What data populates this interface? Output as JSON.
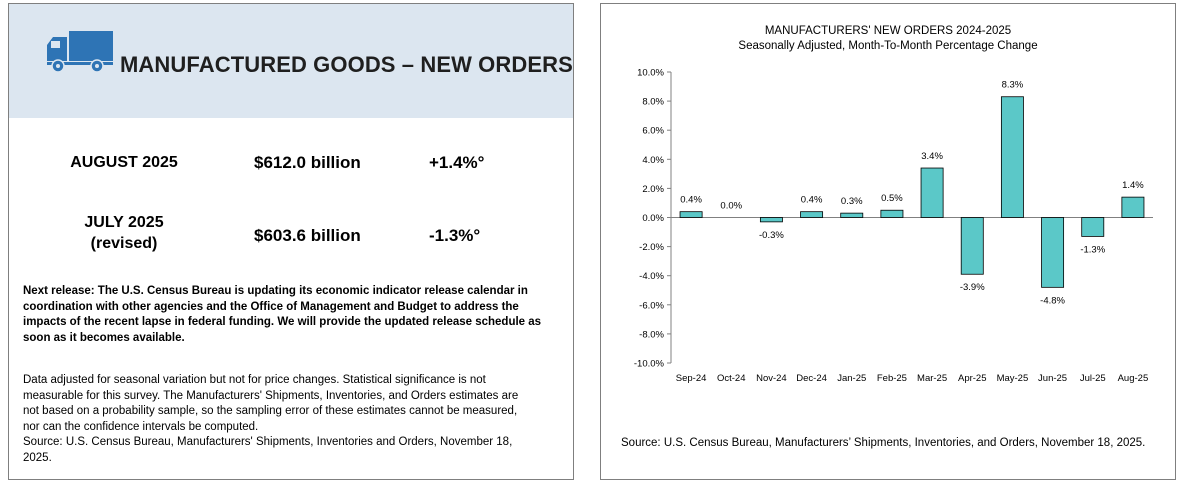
{
  "summary": {
    "title": "MANUFACTURED GOODS – NEW ORDERS",
    "rows": [
      {
        "label": "AUGUST 2025",
        "value": "$612.0 billion",
        "change": "+1.4%°"
      },
      {
        "label": "JULY 2025",
        "sublabel": "(revised)",
        "value": "$603.6 billion",
        "change": "-1.3%°"
      }
    ],
    "next_release": "Next release: The U.S. Census Bureau is updating its economic indicator release calendar in coordination with other agencies and the Office of Management and Budget to address the impacts of the recent lapse in federal funding.  We will provide the updated release schedule as soon as it becomes available.",
    "methodology_lines": [
      "Data adjusted for seasonal variation but not for price changes. Statistical significance is not",
      "measurable for this survey.  The Manufacturers' Shipments, Inventories, and Orders estimates are",
      "not based on a probability sample, so the sampling error of these estimates cannot be measured,",
      "nor can the confidence intervals be computed.",
      "Source: U.S. Census Bureau, Manufacturers' Shipments, Inventories and Orders, November 18,",
      "2025."
    ],
    "colors": {
      "header_bg": "#dce6f0",
      "truck": "#2e74b5"
    }
  },
  "chart_data": {
    "type": "bar",
    "title": "MANUFACTURERS' NEW ORDERS 2024-2025",
    "subtitle": "Seasonally Adjusted,  Month-To-Month Percentage Change",
    "categories": [
      "Sep-24",
      "Oct-24",
      "Nov-24",
      "Dec-24",
      "Jan-25",
      "Feb-25",
      "Mar-25",
      "Apr-25",
      "May-25",
      "Jun-25",
      "Jul-25",
      "Aug-25"
    ],
    "values": [
      0.4,
      0.0,
      -0.3,
      0.4,
      0.3,
      0.5,
      3.4,
      -3.9,
      8.3,
      -4.8,
      -1.3,
      1.4
    ],
    "data_labels": [
      "0.4%",
      "0.0%",
      "-0.3%",
      "0.4%",
      "0.3%",
      "0.5%",
      "3.4%",
      "-3.9%",
      "8.3%",
      "-4.8%",
      "-1.3%",
      "1.4%"
    ],
    "y_ticks": [
      10,
      8,
      6,
      4,
      2,
      0,
      -2,
      -4,
      -6,
      -8,
      -10
    ],
    "y_tick_labels": [
      "10.0%",
      "8.0%",
      "6.0%",
      "4.0%",
      "2.0%",
      "0.0%",
      "-2.0%",
      "-4.0%",
      "-6.0%",
      "-8.0%",
      "-10.0%"
    ],
    "ylim": [
      -10,
      10
    ],
    "xlabel": "",
    "ylabel": "",
    "grid": false,
    "bar_color": "#5bc8c8",
    "source": "Source: U.S. Census Bureau, Manufacturers’ Shipments, Inventories, and Orders, November 18, 2025."
  }
}
